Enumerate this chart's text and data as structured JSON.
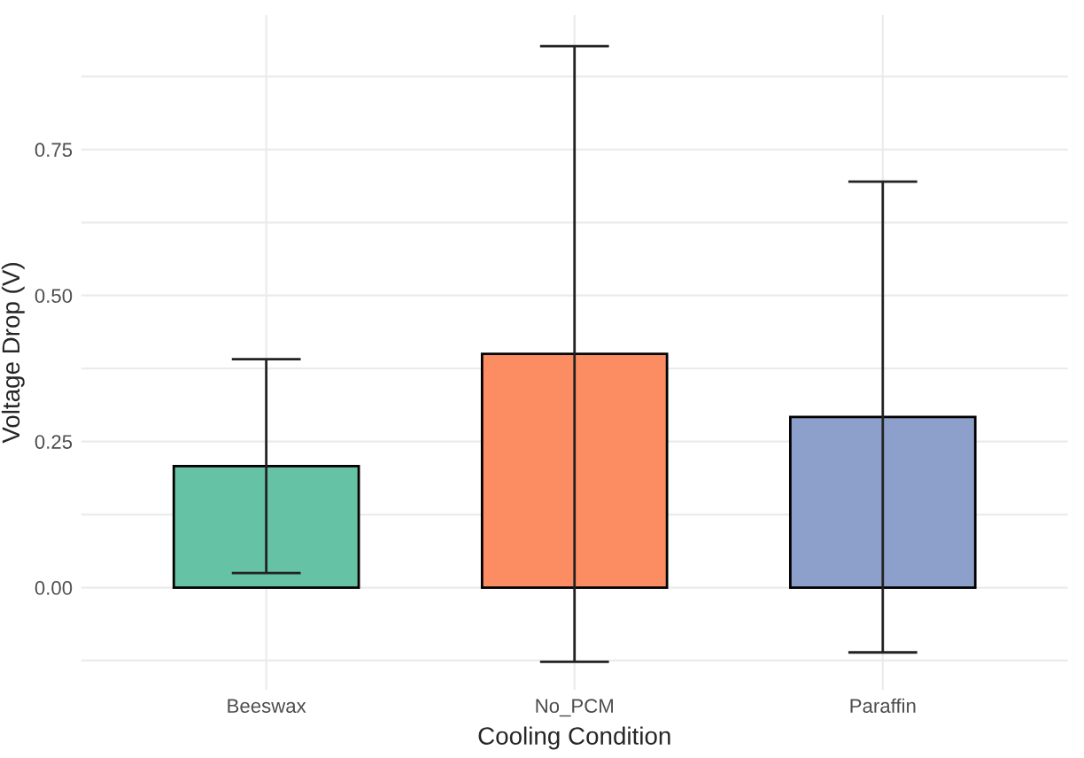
{
  "chart_data": {
    "type": "bar",
    "xlabel": "Cooling Condition",
    "ylabel": "Voltage Drop (V)",
    "categories": [
      "Beeswax",
      "No_PCM",
      "Paraffin"
    ],
    "values": [
      0.208,
      0.4,
      0.292
    ],
    "colors": [
      "#66c2a5",
      "#fc8d62",
      "#8da0cb"
    ],
    "errors": [
      0.183,
      0.527,
      0.403
    ],
    "ylim": [
      -0.175,
      0.98
    ],
    "yticks": [
      {
        "value": -0.125,
        "label": null
      },
      {
        "value": 0,
        "label": "0.00"
      },
      {
        "value": 0.125,
        "label": null
      },
      0.25,
      {
        "value": 0.375,
        "label": null
      },
      {
        "value": 0.5,
        "label": "0.50"
      },
      {
        "value": 0.625,
        "label": null
      },
      0.75,
      {
        "value": 0.875,
        "label": null
      }
    ],
    "grid": true
  }
}
